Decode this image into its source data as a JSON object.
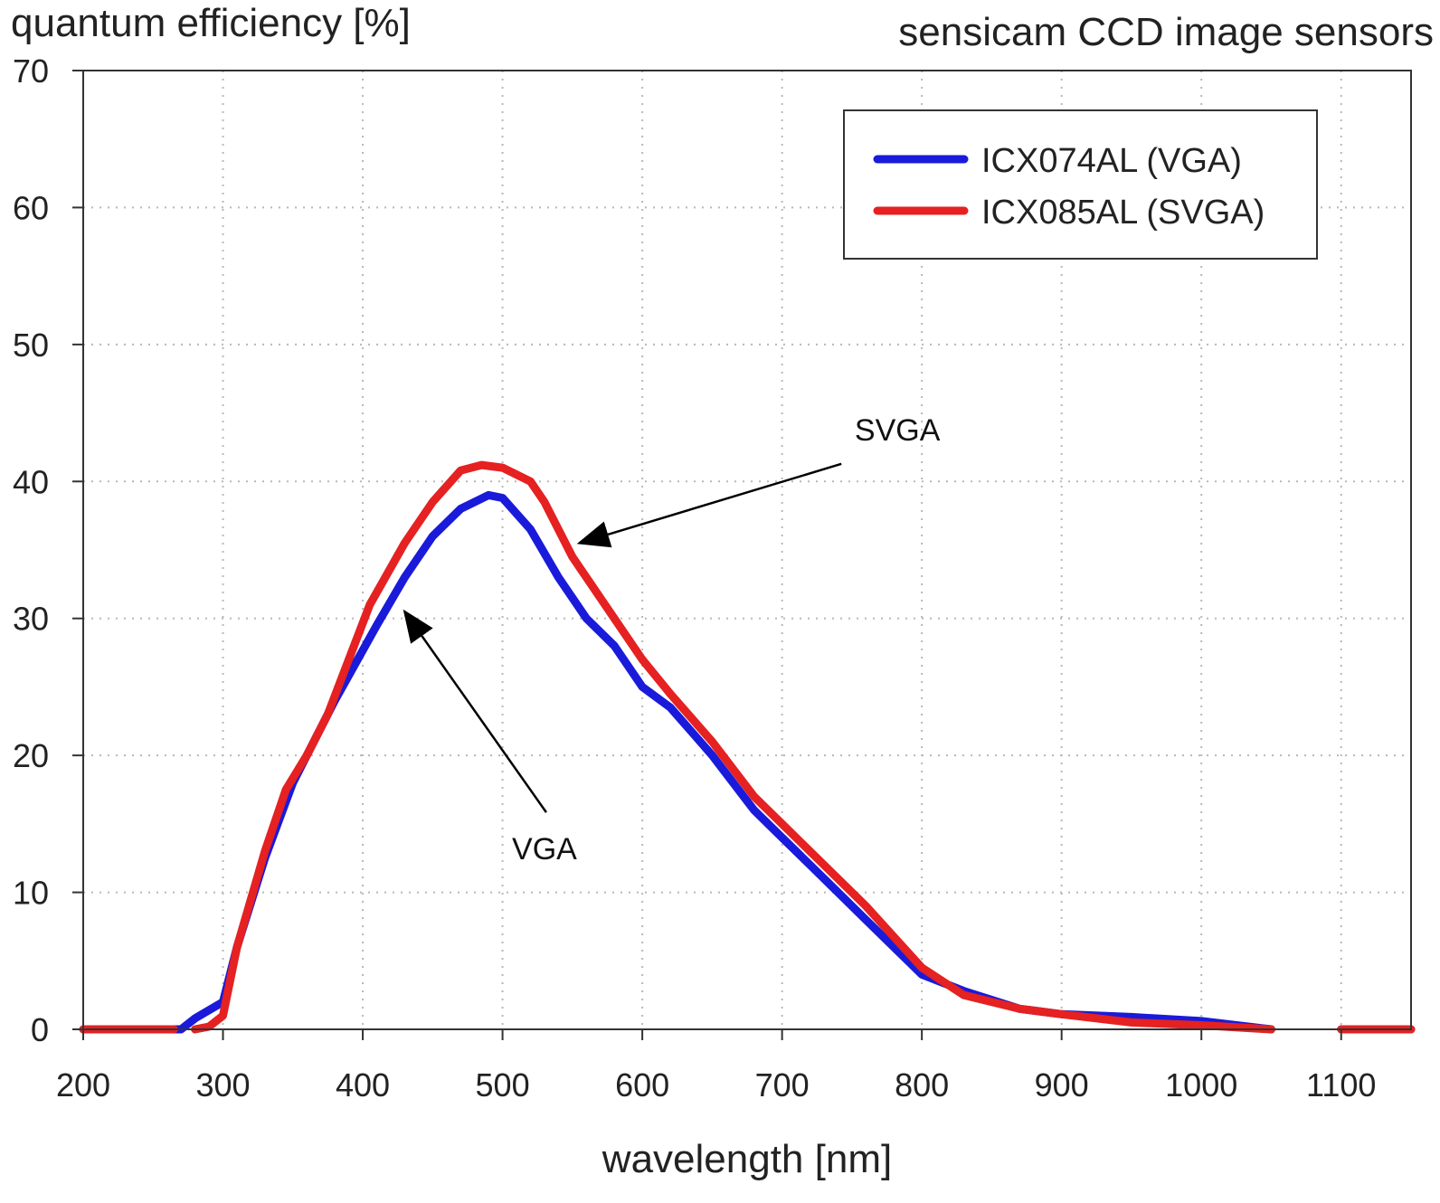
{
  "chart_data": {
    "type": "line",
    "title": "sensicam CCD image sensors",
    "ylabel": "quantum efficiency [%]",
    "xlabel": "wavelength [nm]",
    "xlim": [
      200,
      1150
    ],
    "ylim": [
      0,
      70
    ],
    "xticks": [
      200,
      300,
      400,
      500,
      600,
      700,
      800,
      900,
      1000,
      1100
    ],
    "yticks": [
      0,
      10,
      20,
      30,
      40,
      50,
      60,
      70
    ],
    "grid": true,
    "legend_position": "top-right",
    "series": [
      {
        "name": "ICX074AL (VGA)",
        "color": "#1a1adb",
        "segments": [
          [
            [
              200,
              0
            ],
            [
              270,
              0
            ],
            [
              280,
              0.8
            ],
            [
              300,
              2
            ],
            [
              310,
              6
            ],
            [
              330,
              12.5
            ],
            [
              350,
              18
            ],
            [
              380,
              24
            ],
            [
              410,
              29.5
            ],
            [
              430,
              33
            ],
            [
              450,
              36
            ],
            [
              470,
              38
            ],
            [
              490,
              39
            ],
            [
              500,
              38.8
            ],
            [
              520,
              36.5
            ],
            [
              540,
              33
            ],
            [
              560,
              30
            ],
            [
              580,
              28
            ],
            [
              600,
              25
            ],
            [
              620,
              23.5
            ],
            [
              650,
              20
            ],
            [
              680,
              16
            ],
            [
              700,
              14
            ],
            [
              730,
              11
            ],
            [
              760,
              8
            ],
            [
              800,
              4
            ],
            [
              830,
              2.8
            ],
            [
              870,
              1.5
            ],
            [
              900,
              1.1
            ],
            [
              950,
              0.9
            ],
            [
              1000,
              0.6
            ],
            [
              1050,
              0
            ]
          ],
          [
            [
              1100,
              0
            ],
            [
              1150,
              0
            ]
          ]
        ]
      },
      {
        "name": "ICX085AL (SVGA)",
        "color": "#e52121",
        "segments": [
          [
            [
              200,
              0
            ],
            [
              265,
              0
            ]
          ],
          [
            [
              280,
              0
            ],
            [
              290,
              0.2
            ],
            [
              300,
              1
            ],
            [
              310,
              6
            ],
            [
              330,
              13
            ],
            [
              345,
              17.5
            ],
            [
              360,
              20
            ],
            [
              375,
              23
            ],
            [
              390,
              27
            ],
            [
              405,
              31
            ],
            [
              430,
              35.5
            ],
            [
              450,
              38.5
            ],
            [
              470,
              40.8
            ],
            [
              485,
              41.2
            ],
            [
              500,
              41
            ],
            [
              520,
              40
            ],
            [
              530,
              38.5
            ],
            [
              550,
              34.5
            ],
            [
              570,
              31.5
            ],
            [
              600,
              27
            ],
            [
              620,
              24.5
            ],
            [
              650,
              21
            ],
            [
              680,
              17
            ],
            [
              700,
              15
            ],
            [
              730,
              12
            ],
            [
              760,
              9
            ],
            [
              800,
              4.5
            ],
            [
              830,
              2.5
            ],
            [
              870,
              1.5
            ],
            [
              900,
              1.1
            ],
            [
              950,
              0.5
            ],
            [
              1000,
              0.3
            ],
            [
              1050,
              0
            ]
          ],
          [
            [
              1100,
              0
            ],
            [
              1150,
              0
            ]
          ]
        ]
      }
    ],
    "annotations": [
      {
        "text": "SVGA",
        "at": [
          745,
          43
        ],
        "points_to": [
          555,
          35.5
        ]
      },
      {
        "text": "VGA",
        "at": [
          530,
          16.5
        ],
        "points_to": [
          430,
          30.5
        ]
      }
    ]
  }
}
